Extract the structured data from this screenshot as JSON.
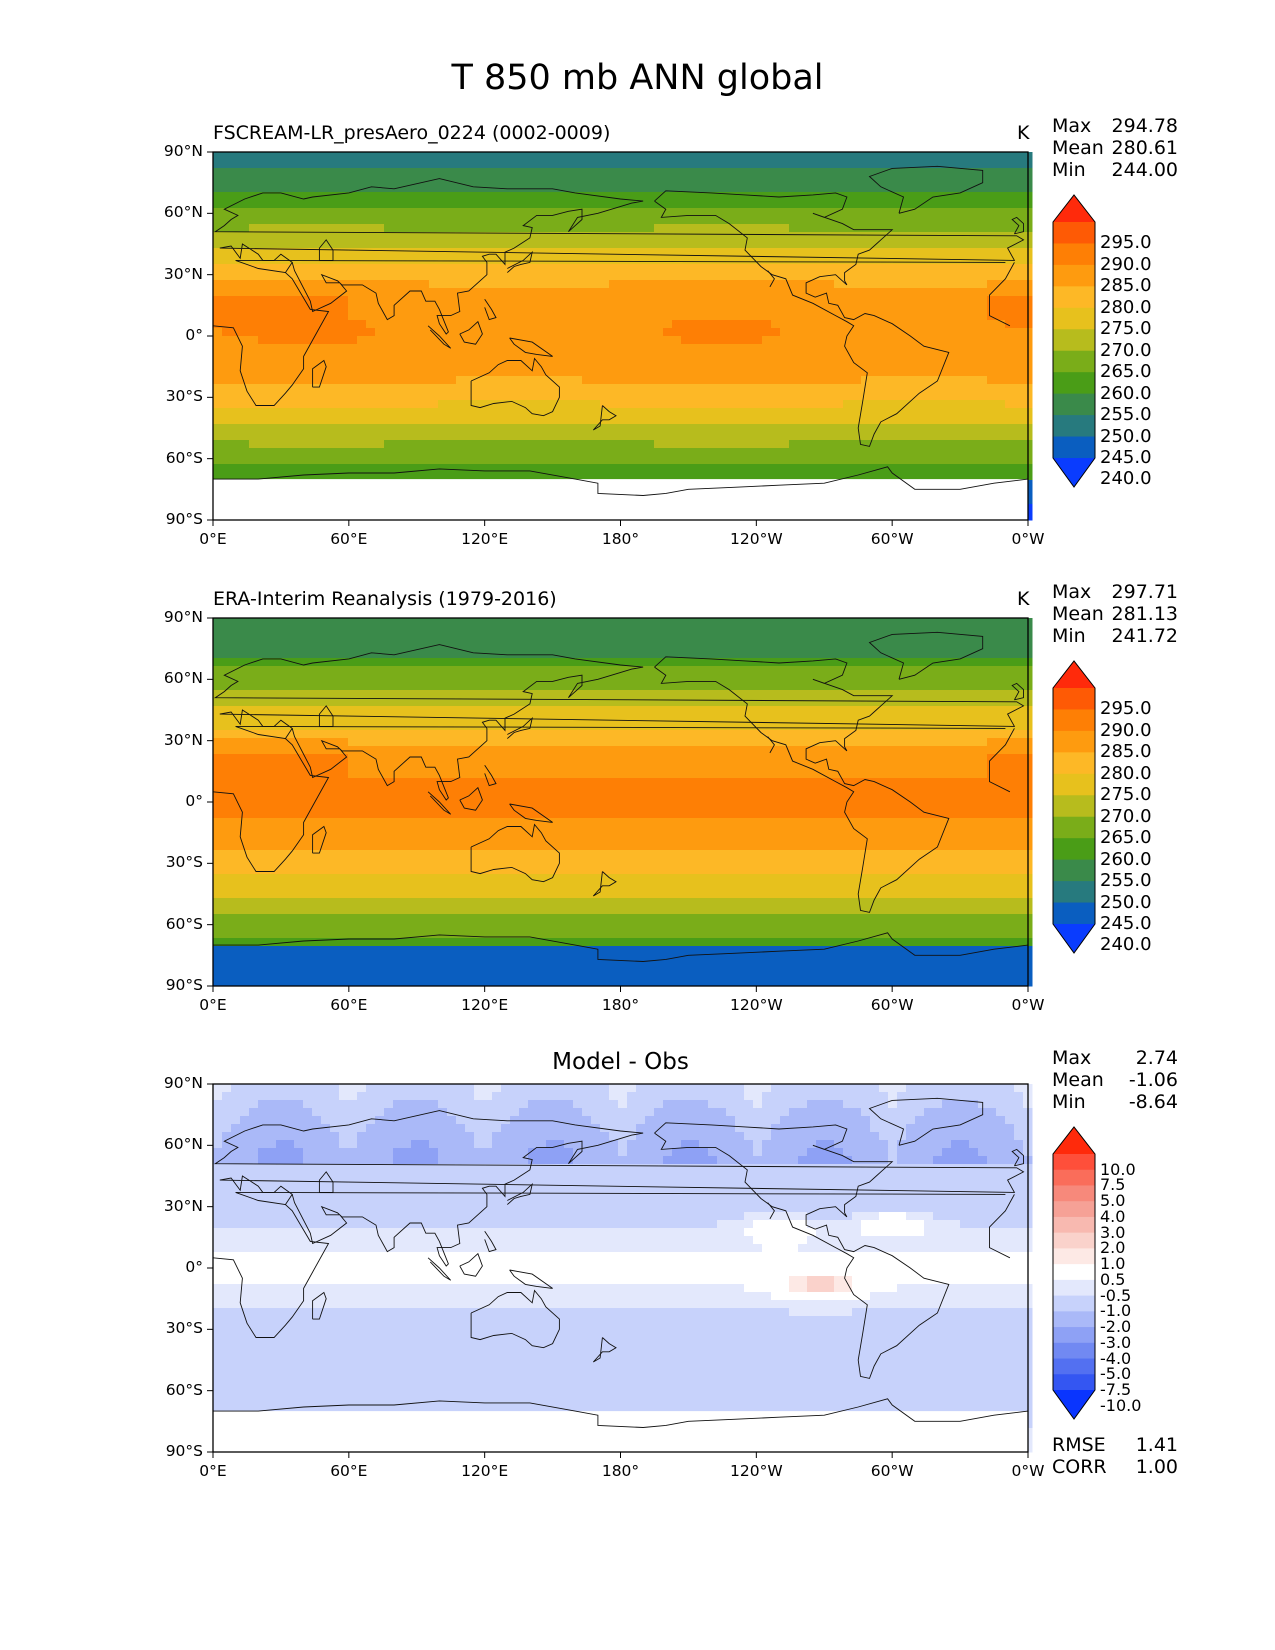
{
  "suptitle": "T 850 mb ANN global",
  "axes": {
    "x_ticks": [
      "0°E",
      "60°E",
      "120°E",
      "180°",
      "120°W",
      "60°W",
      "0°W"
    ],
    "y_ticks": [
      "90°N",
      "60°N",
      "30°N",
      "0°",
      "30°S",
      "60°S",
      "90°S"
    ]
  },
  "panels": [
    {
      "title": "FSCREAM-LR_presAero_0224 (0002-0009)",
      "units": "K",
      "stats": {
        "max_label": "Max",
        "max": "294.78",
        "mean_label": "Mean",
        "mean": "280.61",
        "min_label": "Min",
        "min": "244.00"
      },
      "colorbar": {
        "labels": [
          "295.0",
          "290.0",
          "285.0",
          "280.0",
          "275.0",
          "270.0",
          "265.0",
          "260.0",
          "255.0",
          "250.0",
          "245.0",
          "240.0"
        ],
        "colors": [
          "#ff2a0b",
          "#fe5a05",
          "#fe7f05",
          "#fe9b0f",
          "#fdb826",
          "#e7c11d",
          "#b7bc1d",
          "#7aad19",
          "#4a9d17",
          "#3a8a4a",
          "#277a7e",
          "#0a5ec0",
          "#0a3cfe"
        ]
      }
    },
    {
      "title": "ERA-Interim Reanalysis (1979-2016)",
      "units": "K",
      "stats": {
        "max_label": "Max",
        "max": "297.71",
        "mean_label": "Mean",
        "mean": "281.13",
        "min_label": "Min",
        "min": "241.72"
      },
      "colorbar": {
        "labels": [
          "295.0",
          "290.0",
          "285.0",
          "280.0",
          "275.0",
          "270.0",
          "265.0",
          "260.0",
          "255.0",
          "250.0",
          "245.0",
          "240.0"
        ],
        "colors": [
          "#ff2a0b",
          "#fe5a05",
          "#fe7f05",
          "#fe9b0f",
          "#fdb826",
          "#e7c11d",
          "#b7bc1d",
          "#7aad19",
          "#4a9d17",
          "#3a8a4a",
          "#277a7e",
          "#0a5ec0",
          "#0a3cfe"
        ]
      }
    },
    {
      "title": "Model - Obs",
      "units": "",
      "stats": {
        "max_label": "Max",
        "max": "2.74",
        "mean_label": "Mean",
        "mean": "-1.06",
        "min_label": "Min",
        "min": "-8.64"
      },
      "colorbar": {
        "labels": [
          "10.0",
          "7.5",
          "5.0",
          "4.0",
          "3.0",
          "2.0",
          "1.0",
          "0.5",
          "-0.5",
          "-1.0",
          "-2.0",
          "-3.0",
          "-4.0",
          "-5.0",
          "-7.5",
          "-10.0"
        ],
        "colors": [
          "#ff2a0b",
          "#fe4f3a",
          "#fa6d5a",
          "#f7897b",
          "#f6a196",
          "#f8b9b0",
          "#fad2cb",
          "#fde9e5",
          "#ffffff",
          "#e3e8fc",
          "#c7d2fb",
          "#aab9f8",
          "#8ea1f5",
          "#7189f2",
          "#5370f1",
          "#3456f2",
          "#0a35fe"
        ]
      },
      "metrics": {
        "rmse_label": "RMSE",
        "rmse": "1.41",
        "corr_label": "CORR",
        "corr": "1.00"
      }
    }
  ]
}
